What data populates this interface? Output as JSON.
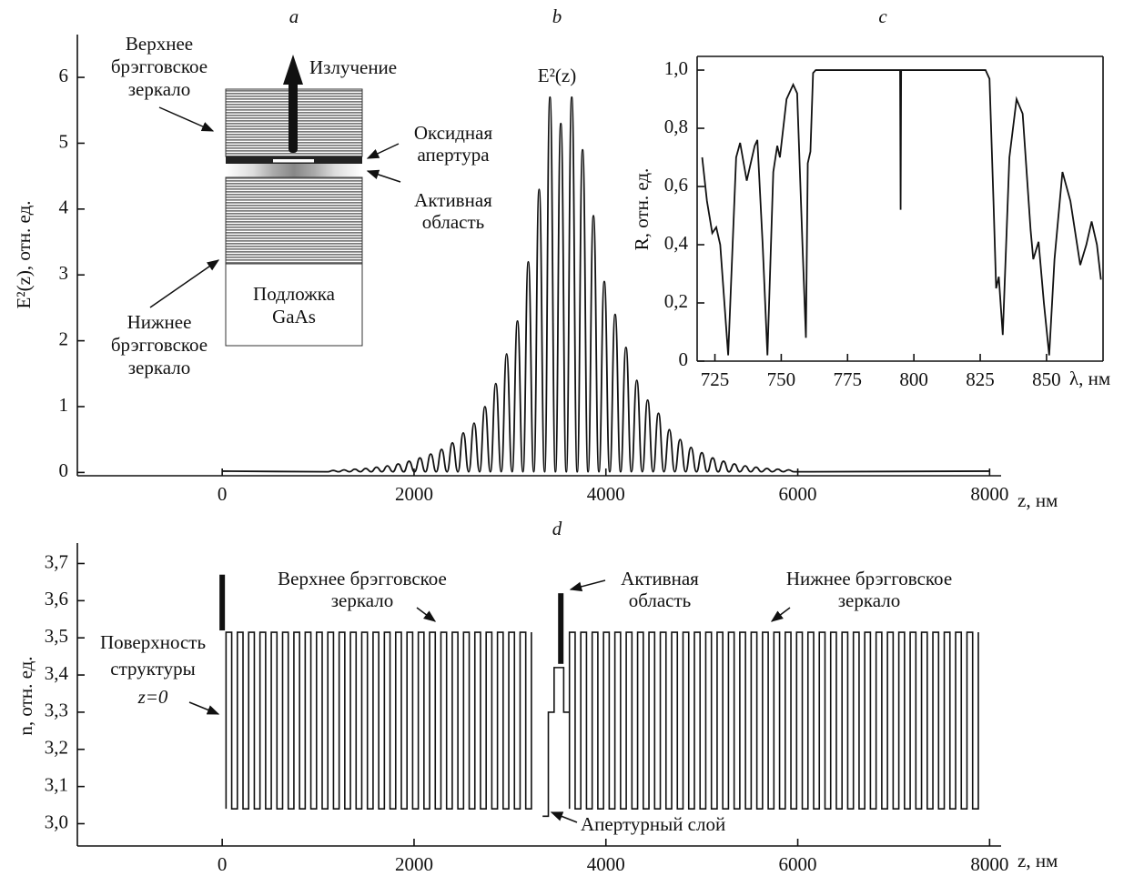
{
  "inset_diagram": {
    "title": "a",
    "upper_mirror": [
      "Верхнее",
      "брэгговское",
      "зеркало"
    ],
    "emission": "Излучение",
    "oxide_aperture": [
      "Оксидная",
      "апертура"
    ],
    "active_region": [
      "Активная",
      "область"
    ],
    "substrate": [
      "Подложка",
      "GaAs"
    ],
    "lower_mirror": [
      "Нижнее",
      "брэгговское",
      "зеркало"
    ]
  },
  "chart_data": [
    {
      "type": "line",
      "title": "b",
      "curve_label": "E²(z)",
      "ylabel": "E²(z), отн. ед.",
      "xlabel": "z, нм",
      "color": "#111111",
      "x": [
        0,
        1100,
        1157,
        1214,
        1270,
        1327,
        1383,
        1440,
        1496,
        1553,
        1609,
        1666,
        1722,
        1779,
        1835,
        1892,
        1948,
        2005,
        2061,
        2118,
        2174,
        2231,
        2287,
        2344,
        2400,
        2457,
        2513,
        2570,
        2626,
        2683,
        2739,
        2796,
        2852,
        2909,
        2965,
        3022,
        3078,
        3135,
        3191,
        3248,
        3304,
        3361,
        3417,
        3474,
        3530,
        3587,
        3644,
        3701,
        3757,
        3814,
        3870,
        3927,
        3983,
        4040,
        4096,
        4153,
        4209,
        4266,
        4322,
        4379,
        4435,
        4492,
        4548,
        4605,
        4661,
        4718,
        4774,
        4831,
        4887,
        4944,
        5000,
        5057,
        5113,
        5170,
        5226,
        5283,
        5339,
        5396,
        5452,
        5509,
        5565,
        5622,
        5678,
        5735,
        5791,
        5848,
        5904,
        5960,
        8000
      ],
      "values": [
        0.02,
        0.01,
        0.03,
        0.01,
        0.04,
        0.01,
        0.05,
        0.01,
        0.06,
        0.01,
        0.08,
        0.01,
        0.1,
        0.01,
        0.13,
        0.01,
        0.17,
        0.01,
        0.22,
        0.01,
        0.28,
        0.01,
        0.35,
        0.01,
        0.45,
        0.01,
        0.6,
        0.01,
        0.75,
        0.01,
        1.0,
        0.01,
        1.35,
        0.01,
        1.8,
        0.01,
        2.3,
        0.01,
        3.2,
        0.01,
        4.3,
        0.01,
        5.7,
        0.01,
        5.3,
        0.01,
        5.7,
        0.01,
        4.9,
        0.01,
        3.9,
        0.01,
        2.9,
        0.01,
        2.4,
        0.01,
        1.9,
        0.01,
        1.4,
        0.01,
        1.1,
        0.01,
        0.9,
        0.01,
        0.65,
        0.01,
        0.5,
        0.01,
        0.38,
        0.01,
        0.3,
        0.01,
        0.22,
        0.01,
        0.17,
        0.01,
        0.13,
        0.01,
        0.1,
        0.01,
        0.08,
        0.01,
        0.06,
        0.01,
        0.05,
        0.01,
        0.04,
        0.01,
        0.02
      ],
      "xlim": [
        -1510,
        8120
      ],
      "ylim": [
        -0.05,
        6.65
      ],
      "xticks": [
        0,
        2000,
        4000,
        6000,
        8000
      ],
      "yticks": [
        0,
        1,
        2,
        3,
        4,
        5,
        6
      ]
    },
    {
      "type": "line",
      "title": "c",
      "ylabel": "R, отн. ед.",
      "xlabel": "λ, нм",
      "color": "#111111",
      "frame": true,
      "x": [
        720.2,
        722,
        724,
        725.5,
        727,
        730,
        733,
        734.5,
        737,
        740,
        741,
        743,
        744.8,
        747,
        748.5,
        749.5,
        752,
        754.5,
        756,
        758,
        759.3,
        760,
        761,
        762,
        763,
        770,
        794.8,
        795,
        795.2,
        820,
        827,
        828.5,
        830,
        831,
        832,
        833.5,
        836,
        838.7,
        841,
        844,
        845,
        847,
        849,
        851,
        853,
        856,
        859,
        862.7,
        865,
        867,
        869,
        870.5
      ],
      "values": [
        0.7,
        0.55,
        0.44,
        0.46,
        0.4,
        0.02,
        0.7,
        0.75,
        0.62,
        0.74,
        0.76,
        0.4,
        0.02,
        0.65,
        0.74,
        0.7,
        0.9,
        0.95,
        0.92,
        0.4,
        0.08,
        0.68,
        0.72,
        0.99,
        1.0,
        1.0,
        1.0,
        0.52,
        1.0,
        1.0,
        1.0,
        0.97,
        0.55,
        0.25,
        0.29,
        0.09,
        0.7,
        0.9,
        0.85,
        0.45,
        0.35,
        0.41,
        0.2,
        0.02,
        0.35,
        0.65,
        0.55,
        0.33,
        0.4,
        0.48,
        0.4,
        0.28
      ],
      "xlim": [
        718.3,
        871.3
      ],
      "ylim": [
        0,
        1.047
      ],
      "xticks": [
        725,
        750,
        775,
        800,
        825,
        850
      ],
      "yticks": [
        0,
        {
          "value": 0.2,
          "label": "0,2"
        },
        {
          "value": 0.4,
          "label": "0,4"
        },
        {
          "value": 0.6,
          "label": "0,6"
        },
        {
          "value": 0.8,
          "label": "0,8"
        },
        {
          "value": 1.0,
          "label": "1,0"
        }
      ]
    },
    {
      "type": "step",
      "title": "d",
      "ylabel": "n, отн. ед.",
      "xlabel": "z, нм",
      "color": "#111111",
      "mirrors": [
        {
          "z": [
            40,
            3340
          ],
          "period": 117.9,
          "n": [
            3.515,
            3.04
          ]
        },
        {
          "z": [
            3620,
            8000
          ],
          "period": 118.4,
          "n": [
            3.515,
            3.04
          ]
        }
      ],
      "active": {
        "z": [
          3340,
          3400,
          3460,
          3560,
          3620
        ],
        "n": [
          3.02,
          3.3,
          3.42,
          3.3
        ]
      },
      "bars": [
        {
          "z": 0,
          "n": [
            3.52,
            3.67
          ]
        },
        {
          "z": 3530,
          "n": [
            3.43,
            3.62
          ]
        }
      ],
      "annotations": {
        "upper_mirror": [
          "Верхнее брэгговское",
          "зеркало"
        ],
        "active_region": [
          "Активная",
          "область"
        ],
        "lower_mirror": [
          "Нижнее брэгговское",
          "зеркало"
        ],
        "surface": [
          "Поверхность",
          "структуры",
          "z=0"
        ],
        "aperture_layer": "Апертурный слой"
      },
      "xlim": [
        -1510,
        8120
      ],
      "ylim": [
        2.94,
        3.755
      ],
      "xticks": [
        0,
        2000,
        4000,
        6000,
        8000
      ],
      "yticks": [
        {
          "value": 3.0,
          "label": "3,0"
        },
        {
          "value": 3.1,
          "label": "3,1"
        },
        {
          "value": 3.2,
          "label": "3,2"
        },
        {
          "value": 3.3,
          "label": "3,3"
        },
        {
          "value": 3.4,
          "label": "3,4"
        },
        {
          "value": 3.5,
          "label": "3,5"
        },
        {
          "value": 3.6,
          "label": "3,6"
        },
        {
          "value": 3.7,
          "label": "3,7"
        }
      ]
    }
  ]
}
